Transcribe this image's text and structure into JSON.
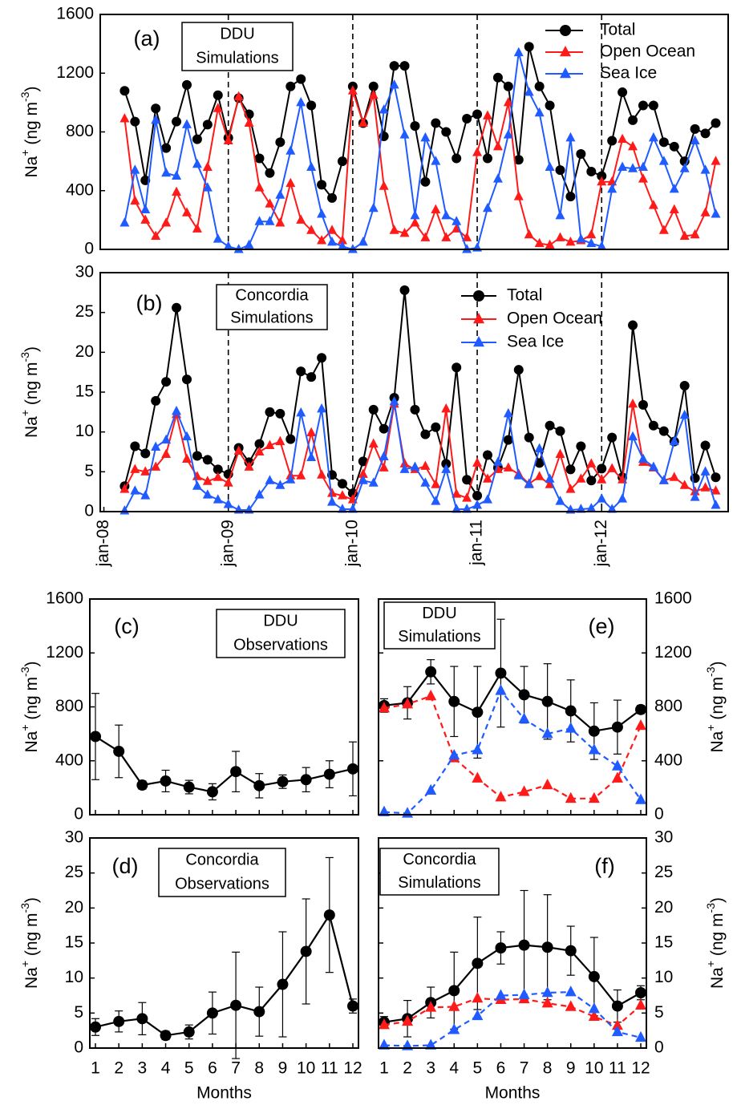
{
  "chart_data": [
    {
      "type": "line",
      "label": "(a)",
      "annotation": [
        "DDU",
        "Simulations"
      ],
      "ylabel": [
        "Na",
        "+",
        " (ng m",
        "-3",
        ")"
      ],
      "xlim": [
        -0.35,
        60.2
      ],
      "ylim": [
        0,
        1600
      ],
      "yticks": [
        0,
        400,
        800,
        1200,
        1600
      ],
      "vlines": [
        12,
        24,
        36,
        48
      ],
      "legend": "upper right",
      "x": [
        2,
        3,
        4,
        5,
        6,
        7,
        8,
        9,
        10,
        11,
        12,
        13,
        14,
        15,
        16,
        17,
        18,
        19,
        20,
        21,
        22,
        23,
        24,
        25,
        26,
        27,
        28,
        29,
        30,
        31,
        32,
        33,
        34,
        35,
        36,
        37,
        38,
        39,
        40,
        41,
        42,
        43,
        44,
        45,
        46,
        47,
        48,
        49,
        50,
        51,
        52,
        53,
        54,
        55,
        56,
        57,
        58,
        59
      ],
      "series": [
        {
          "name": "Total",
          "color": "#000000",
          "marker": "circle",
          "values": [
            1080,
            870,
            470,
            960,
            690,
            870,
            1120,
            750,
            850,
            1050,
            760,
            1030,
            920,
            620,
            520,
            730,
            1110,
            1160,
            980,
            440,
            350,
            600,
            1110,
            860,
            1110,
            770,
            1250,
            1250,
            840,
            460,
            860,
            800,
            620,
            890,
            920,
            620,
            1170,
            1110,
            610,
            1380,
            1110,
            980,
            540,
            360,
            650,
            530,
            500,
            740,
            1070,
            880,
            980,
            980,
            730,
            700,
            600,
            820,
            790,
            860
          ]
        },
        {
          "name": "Open Ocean",
          "color": "#ff1a1a",
          "marker": "triangle",
          "values": [
            890,
            330,
            200,
            90,
            180,
            390,
            250,
            140,
            560,
            960,
            740,
            1040,
            860,
            420,
            310,
            180,
            450,
            200,
            130,
            60,
            130,
            60,
            1080,
            860,
            1050,
            430,
            130,
            110,
            180,
            80,
            270,
            80,
            140,
            80,
            660,
            910,
            700,
            1000,
            360,
            100,
            40,
            30,
            80,
            50,
            60,
            100,
            460,
            460,
            750,
            700,
            480,
            300,
            130,
            270,
            90,
            100,
            250,
            600
          ]
        },
        {
          "name": "Sea Ice",
          "color": "#1f5bff",
          "marker": "triangle",
          "values": [
            180,
            540,
            270,
            880,
            520,
            500,
            850,
            580,
            420,
            70,
            20,
            0,
            30,
            190,
            190,
            370,
            670,
            1000,
            560,
            240,
            50,
            20,
            0,
            50,
            280,
            950,
            1120,
            780,
            230,
            760,
            600,
            230,
            190,
            0,
            10,
            280,
            480,
            780,
            1340,
            1070,
            930,
            560,
            230,
            760,
            70,
            40,
            20,
            410,
            560,
            550,
            560,
            760,
            600,
            410,
            550,
            740,
            540,
            240
          ]
        }
      ]
    },
    {
      "type": "line",
      "label": "(b)",
      "annotation": [
        "Concordia",
        "Simulations"
      ],
      "ylabel": [
        "Na",
        "+",
        " (ng m",
        "-3",
        ")"
      ],
      "xlim": [
        -0.35,
        60.2
      ],
      "ylim": [
        0,
        30
      ],
      "yticks": [
        0,
        5,
        10,
        15,
        20,
        25,
        30
      ],
      "vlines": [
        12,
        24,
        36,
        48
      ],
      "legend": "upper right",
      "xticks": [
        {
          "value": 0,
          "label": "jan-08"
        },
        {
          "value": 12,
          "label": "jan-09"
        },
        {
          "value": 24,
          "label": "jan-10"
        },
        {
          "value": 36,
          "label": "jan-11"
        },
        {
          "value": 48,
          "label": "jan-12"
        }
      ],
      "xtick_rotation": -90,
      "x": [
        2,
        3,
        4,
        5,
        6,
        7,
        8,
        9,
        10,
        11,
        12,
        13,
        14,
        15,
        16,
        17,
        18,
        19,
        20,
        21,
        22,
        23,
        24,
        25,
        26,
        27,
        28,
        29,
        30,
        31,
        32,
        33,
        34,
        35,
        36,
        37,
        38,
        39,
        40,
        41,
        42,
        43,
        44,
        45,
        46,
        47,
        48,
        49,
        50,
        51,
        52,
        53,
        54,
        55,
        56,
        57,
        58,
        59
      ],
      "series": [
        {
          "name": "Total",
          "color": "#000000",
          "marker": "circle",
          "values": [
            3.2,
            8.2,
            7.3,
            13.9,
            16.3,
            25.6,
            16.6,
            7,
            6.5,
            5.3,
            4.7,
            8,
            6.2,
            8.5,
            12.5,
            12.3,
            9.1,
            17.6,
            16.9,
            19.3,
            4.6,
            3.5,
            2.3,
            6.3,
            12.8,
            10.4,
            14.3,
            27.8,
            12.8,
            9.7,
            10.6,
            6,
            18.1,
            4,
            2,
            7.1,
            5.5,
            9,
            17.8,
            9.3,
            6.1,
            10.8,
            10.1,
            5.3,
            8.2,
            3.9,
            5.4,
            9.3,
            4.3,
            23.4,
            13.4,
            10.8,
            10.1,
            8.8,
            15.8,
            4.2,
            8.3,
            4.3
          ]
        },
        {
          "name": "Open Ocean",
          "color": "#ff1a1a",
          "marker": "triangle",
          "values": [
            2.8,
            5.3,
            5,
            5.6,
            7.2,
            12.2,
            6.6,
            4.4,
            3.8,
            4.3,
            3.6,
            7.6,
            5.6,
            7.5,
            8.3,
            8.8,
            4.5,
            4.5,
            9.9,
            4.6,
            2.3,
            2,
            1.5,
            4.7,
            8.5,
            5.5,
            13.5,
            6,
            5.3,
            5.7,
            3.4,
            12.9,
            2.2,
            1.7,
            6.1,
            4.1,
            5.3,
            5.5,
            4.7,
            3.5,
            4.4,
            3.4,
            7.2,
            2.8,
            4.1,
            6,
            4,
            5.4,
            4,
            13.5,
            6.2,
            5.5,
            3.9,
            4.3,
            3.3,
            2.5,
            3,
            2.6
          ]
        },
        {
          "name": "Sea Ice",
          "color": "#1f5bff",
          "marker": "triangle",
          "values": [
            0.1,
            2.6,
            2,
            8.1,
            9,
            12.6,
            9.4,
            3.2,
            2.1,
            1.5,
            0.9,
            0.2,
            0.2,
            2.1,
            3.9,
            3.3,
            4,
            12.4,
            6.8,
            12.9,
            1.2,
            0.3,
            0.3,
            3.9,
            3.6,
            6.9,
            13.8,
            5.3,
            5.6,
            3.6,
            1.3,
            5.3,
            0.3,
            0.3,
            0.8,
            1.5,
            6.2,
            12.3,
            4.5,
            3.4,
            7.9,
            4.1,
            1.3,
            0.2,
            0.3,
            0.4,
            1.6,
            0.3,
            1.6,
            9.4,
            6.6,
            5.6,
            3.9,
            8.8,
            12.1,
            1.8,
            5,
            0.8
          ]
        }
      ]
    },
    {
      "type": "line",
      "label": "(c)",
      "annotation": [
        "DDU",
        "Observations"
      ],
      "ylabel": [
        "Na",
        "+",
        " (ng m",
        "-3",
        ")"
      ],
      "xlim": [
        0.76,
        12.24
      ],
      "ylim": [
        0,
        1600
      ],
      "yticks": [
        0,
        400,
        800,
        1200,
        1600
      ],
      "xticks": [
        1,
        2,
        3,
        4,
        5,
        6,
        7,
        8,
        9,
        10,
        11,
        12
      ],
      "xtick_labels": false,
      "x": [
        1,
        2,
        3,
        4,
        5,
        6,
        7,
        8,
        9,
        10,
        11,
        12
      ],
      "series": [
        {
          "color": "#000000",
          "marker": "circle",
          "values": [
            580,
            470,
            220,
            250,
            205,
            170,
            320,
            215,
            245,
            260,
            300,
            340
          ],
          "errors": [
            320,
            195,
            30,
            80,
            50,
            60,
            150,
            90,
            50,
            90,
            100,
            200
          ]
        }
      ]
    },
    {
      "type": "line",
      "label": "(d)",
      "annotation": [
        "Concordia",
        "Observations"
      ],
      "ylabel": [
        "Na",
        "+",
        " (ng m",
        "-3",
        ")"
      ],
      "xlabel": "Months",
      "xlim": [
        0.76,
        12.24
      ],
      "ylim": [
        0,
        30
      ],
      "yticks": [
        0,
        5,
        10,
        15,
        20,
        25,
        30
      ],
      "xticks": [
        1,
        2,
        3,
        4,
        5,
        6,
        7,
        8,
        9,
        10,
        11,
        12
      ],
      "x": [
        1,
        2,
        3,
        4,
        5,
        6,
        7,
        8,
        9,
        10,
        11,
        12
      ],
      "series": [
        {
          "color": "#000000",
          "marker": "circle",
          "values": [
            3,
            3.8,
            4.2,
            1.8,
            2.3,
            5,
            6.1,
            5.2,
            9.1,
            13.8,
            19,
            6
          ],
          "errors": [
            1.2,
            1.5,
            2.3,
            0.6,
            1,
            3,
            7.6,
            3.5,
            7.5,
            7.5,
            8.2,
            1
          ]
        }
      ]
    },
    {
      "type": "line",
      "label": "(e)",
      "annotation": [
        "DDU",
        "Simulations"
      ],
      "ylabel": [
        "Na",
        "+",
        " (ng m",
        "-3",
        ")"
      ],
      "yaxis_side": "right",
      "xlim": [
        0.76,
        12.24
      ],
      "ylim": [
        0,
        1600
      ],
      "yticks": [
        0,
        400,
        800,
        1200,
        1600
      ],
      "xticks": [
        1,
        2,
        3,
        4,
        5,
        6,
        7,
        8,
        9,
        10,
        11,
        12
      ],
      "xtick_labels": false,
      "x": [
        1,
        2,
        3,
        4,
        5,
        6,
        7,
        8,
        9,
        10,
        11,
        12
      ],
      "series": [
        {
          "color": "#000000",
          "marker": "circle",
          "values": [
            810,
            830,
            1060,
            840,
            760,
            1050,
            890,
            840,
            770,
            620,
            650,
            780
          ],
          "errors": [
            50,
            120,
            90,
            260,
            340,
            400,
            210,
            280,
            230,
            210,
            200,
            30
          ]
        },
        {
          "color": "#ff1a1a",
          "marker": "triangle",
          "dash": true,
          "values": [
            790,
            820,
            880,
            420,
            270,
            130,
            170,
            220,
            120,
            120,
            270,
            660
          ]
        },
        {
          "color": "#1f5bff",
          "marker": "triangle",
          "dash": true,
          "values": [
            20,
            10,
            180,
            440,
            480,
            920,
            710,
            600,
            640,
            480,
            360,
            110
          ]
        }
      ]
    },
    {
      "type": "line",
      "label": "(f)",
      "annotation": [
        "Concordia",
        "Simulations"
      ],
      "ylabel": [
        "Na",
        "+",
        " (ng m",
        "-3",
        ")"
      ],
      "yaxis_side": "right",
      "xlabel": "Months",
      "xlim": [
        0.76,
        12.24
      ],
      "ylim": [
        0,
        30
      ],
      "yticks": [
        0,
        5,
        10,
        15,
        20,
        25,
        30
      ],
      "xticks": [
        1,
        2,
        3,
        4,
        5,
        6,
        7,
        8,
        9,
        10,
        11,
        12
      ],
      "x": [
        1,
        2,
        3,
        4,
        5,
        6,
        7,
        8,
        9,
        10,
        11,
        12
      ],
      "series": [
        {
          "color": "#000000",
          "marker": "circle",
          "values": [
            3.7,
            4.2,
            6.5,
            8.2,
            12.1,
            14.3,
            14.7,
            14.4,
            13.9,
            10.2,
            6,
            7.9
          ],
          "errors": [
            0.8,
            2.6,
            2.2,
            5.5,
            6.6,
            2.3,
            7.8,
            7.5,
            3.5,
            5.6,
            2.3,
            1
          ]
        },
        {
          "color": "#ff1a1a",
          "marker": "triangle",
          "dash": true,
          "values": [
            3.3,
            3.8,
            5.8,
            5.9,
            7.1,
            6.9,
            7,
            6.4,
            5.9,
            4.5,
            3.2,
            6.1
          ]
        },
        {
          "color": "#1f5bff",
          "marker": "triangle",
          "dash": true,
          "values": [
            0.4,
            0.3,
            0.4,
            2.6,
            4.6,
            7.5,
            7.6,
            7.9,
            8,
            5.6,
            2.3,
            1.5
          ]
        }
      ]
    }
  ]
}
